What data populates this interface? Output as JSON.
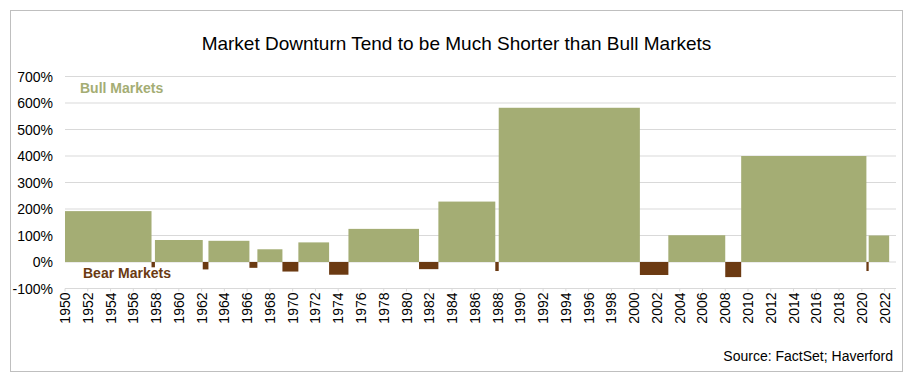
{
  "chart_data": {
    "type": "bar",
    "title": "Market Downturn Tend to be Much Shorter than Bull Markets",
    "source": "Source: FactSet; Haverford",
    "bins": [
      1950,
      1957.6,
      1957.9,
      1962.1,
      1962.6,
      1966.2,
      1966.9,
      1969.1,
      1970.5,
      1973.2,
      1974.9,
      1981.1,
      1982.8,
      1987.8,
      1988.1,
      2000.5,
      2003.0,
      2008.0,
      2009.4,
      2020.4,
      2020.6,
      2022.4
    ],
    "series": [
      {
        "name": "Bull Markets",
        "color": "#a4ad74",
        "values": [
          192,
          null,
          83,
          null,
          80,
          null,
          48,
          null,
          74,
          null,
          125,
          null,
          228,
          null,
          582,
          null,
          101,
          null,
          400,
          null,
          100
        ]
      },
      {
        "name": "Bear Markets",
        "color": "#6b3a12",
        "values": [
          null,
          -20,
          null,
          -28,
          null,
          -22,
          null,
          -36,
          null,
          -48,
          null,
          -27,
          null,
          -34,
          null,
          -49,
          null,
          -57,
          null,
          -34,
          null
        ]
      }
    ],
    "xlim": [
      1950,
      2023
    ],
    "xticks": [
      1950,
      1952,
      1954,
      1956,
      1958,
      1960,
      1962,
      1964,
      1966,
      1968,
      1970,
      1972,
      1974,
      1976,
      1978,
      1980,
      1982,
      1984,
      1986,
      1988,
      1990,
      1992,
      1994,
      1996,
      1998,
      2000,
      2002,
      2004,
      2006,
      2008,
      2010,
      2012,
      2014,
      2016,
      2018,
      2020,
      2022
    ],
    "ylim": [
      -100,
      700
    ],
    "yticks": [
      {
        "value": -100,
        "label": "-100%"
      },
      {
        "value": 0,
        "label": "0%"
      },
      {
        "value": 100,
        "label": "100%"
      },
      {
        "value": 200,
        "label": "200%"
      },
      {
        "value": 300,
        "label": "300%"
      },
      {
        "value": 400,
        "label": "400%"
      },
      {
        "value": 500,
        "label": "500%"
      },
      {
        "value": 600,
        "label": "600%"
      },
      {
        "value": 700,
        "label": "700%"
      }
    ],
    "grid": true
  }
}
